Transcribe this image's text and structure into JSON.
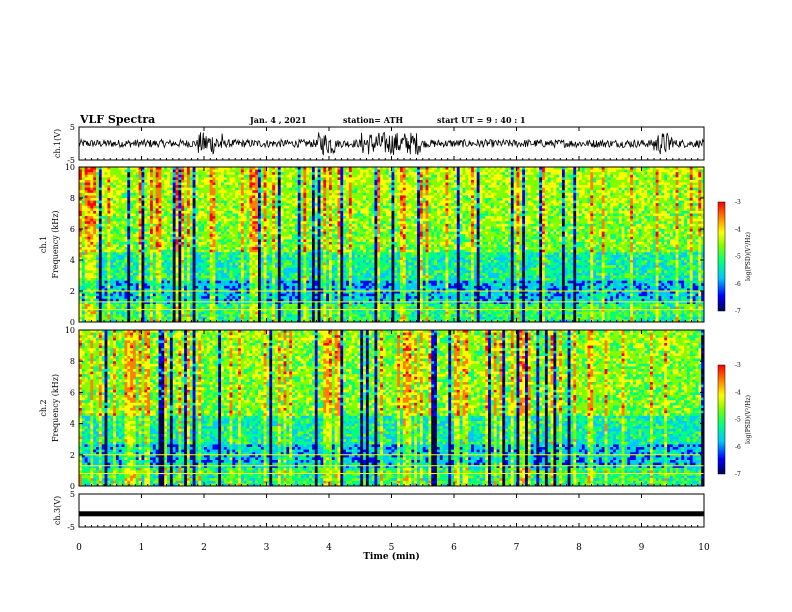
{
  "header": {
    "title": "VLF Spectra",
    "date": "Jan. 4 , 2021",
    "station": "station= ATH",
    "start": "start UT = 9 : 40 : 1"
  },
  "chart_data": [
    {
      "type": "line",
      "name": "ch1-waveform",
      "ylabel": "ch.1(V)",
      "ylim": [
        -5,
        5
      ],
      "xlim": [
        0,
        10
      ],
      "y_ticks": [
        "5",
        "-5"
      ],
      "description_of_values": "noisy waveform mostly within -1..1 V with bursts near 2, 4.6-5.4, 9.3 min"
    },
    {
      "type": "heatmap",
      "name": "ch1-spectrogram",
      "ylabel": "ch.1 Frequency (kHz)",
      "ylim": [
        0,
        10
      ],
      "xlim": [
        0,
        10
      ],
      "y_ticks": [
        "0",
        "2",
        "4",
        "6",
        "8",
        "10"
      ],
      "colorbar": {
        "min": -7,
        "max": -3,
        "ticks": [
          "-3",
          "-4",
          "-5",
          "-6",
          "-7"
        ],
        "label": "log(PSD)(V²/Hz)"
      },
      "colormap": [
        "#00005a",
        "#0000ff",
        "#00c8ff",
        "#00ff80",
        "#80ff00",
        "#ffff00",
        "#ff8000",
        "#ff0000"
      ]
    },
    {
      "type": "heatmap",
      "name": "ch2-spectrogram",
      "ylabel": "ch.2 Frequency (kHz)",
      "ylim": [
        0,
        10
      ],
      "xlim": [
        0,
        10
      ],
      "y_ticks": [
        "0",
        "2",
        "4",
        "6",
        "8",
        "10"
      ],
      "colorbar": {
        "min": -7,
        "max": -3,
        "ticks": [
          "-3",
          "-4",
          "-5",
          "-6",
          "-7"
        ],
        "label": "log(PSD)(V²/Hz)"
      },
      "colormap": [
        "#00005a",
        "#0000ff",
        "#00c8ff",
        "#00ff80",
        "#80ff00",
        "#ffff00",
        "#ff8000",
        "#ff0000"
      ]
    },
    {
      "type": "line",
      "name": "ch3-waveform",
      "ylabel": "ch.3(V)",
      "ylim": [
        -5,
        5
      ],
      "xlim": [
        0,
        10
      ],
      "y_ticks": [
        "5",
        "-5"
      ],
      "values_constant": -1
    }
  ],
  "x_axis": {
    "label": "Time (min)",
    "ticks": [
      "0",
      "1",
      "2",
      "3",
      "4",
      "5",
      "6",
      "7",
      "8",
      "9",
      "10"
    ]
  }
}
